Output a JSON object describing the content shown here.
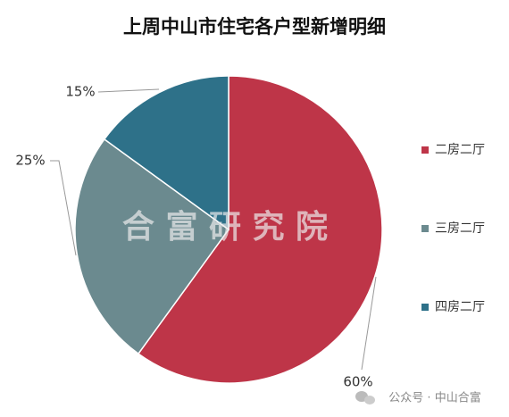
{
  "chart_data": {
    "type": "pie",
    "title": "上周中山市住宅各户型新增明细",
    "categories": [
      "二房二厅",
      "三房二厅",
      "四房二厅"
    ],
    "values": [
      60,
      25,
      15
    ],
    "value_labels": [
      "60%",
      "25%",
      "15%"
    ],
    "colors": [
      "#be3548",
      "#6b8a8f",
      "#2e7189"
    ],
    "legend": "right",
    "watermark": "合 富 研 究 院",
    "footer": "公众号 · 中山合富"
  }
}
